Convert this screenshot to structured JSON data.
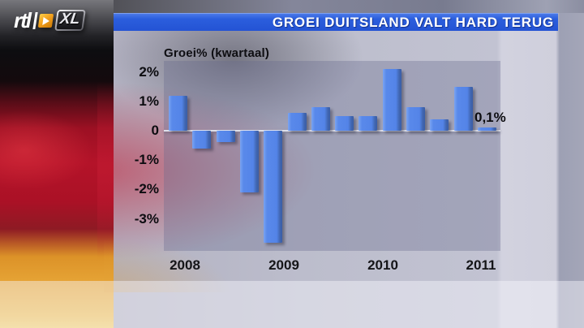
{
  "logo": {
    "brand": "rtl",
    "suffix": "XL"
  },
  "header": {
    "title": "GROEI DUITSLAND VALT HARD TERUG"
  },
  "chart_data": {
    "type": "bar",
    "title": "Groei% (kwartaal)",
    "categories": [
      "2008 Q1",
      "2008 Q2",
      "2008 Q3",
      "2008 Q4",
      "2009 Q1",
      "2009 Q2",
      "2009 Q3",
      "2009 Q4",
      "2010 Q1",
      "2010 Q2",
      "2010 Q3",
      "2010 Q4",
      "2011 Q1",
      "2011 Q2"
    ],
    "values": [
      1.2,
      -0.6,
      -0.4,
      -2.1,
      -3.8,
      0.6,
      0.8,
      0.5,
      0.5,
      2.1,
      0.8,
      0.4,
      1.5,
      0.1
    ],
    "unit": "%",
    "xlabel": "",
    "ylabel": "Groei% (kwartaal)",
    "x_tick_labels": [
      "2008",
      "2009",
      "2010",
      "2011"
    ],
    "y_tick_labels": [
      "2%",
      "1%",
      "0",
      "-1%",
      "-2%",
      "-3%"
    ],
    "y_tick_values": [
      2,
      1,
      0,
      -1,
      -2,
      -3
    ],
    "ylim": [
      -4.1,
      2.4
    ],
    "grid": false,
    "legend": null,
    "annotation": {
      "text": "0,1%",
      "target": "2011 Q2"
    },
    "bar_color": "#5585ea"
  },
  "colors": {
    "header_blue": "#2b5edd",
    "bar_blue": "#5585ea",
    "flag_black": "#0d0d10",
    "flag_red": "#b41329",
    "flag_gold": "#e7a637"
  }
}
